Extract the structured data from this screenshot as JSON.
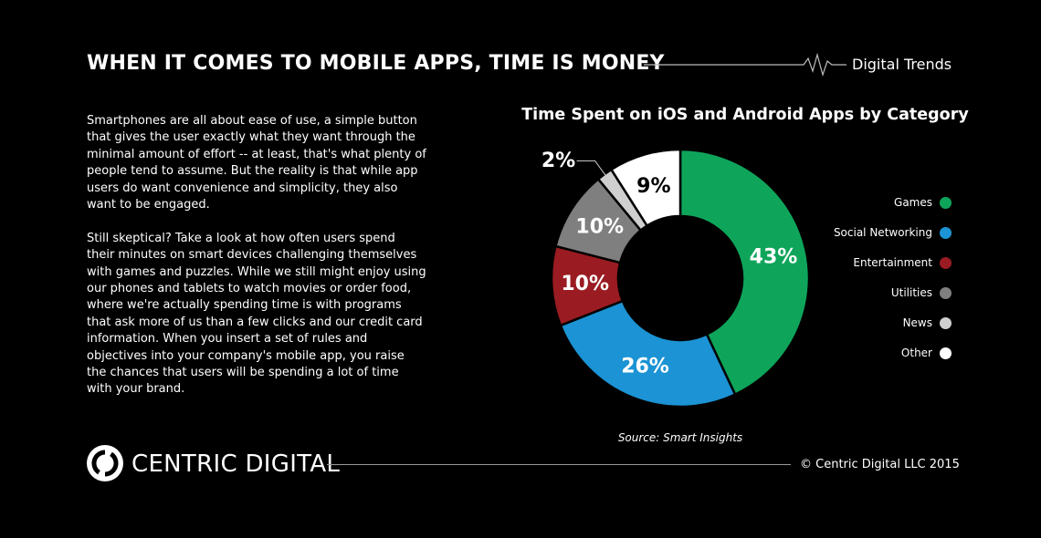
{
  "header": {
    "title": "WHEN IT COMES TO MOBILE APPS, TIME IS MONEY",
    "tag": "Digital Trends"
  },
  "body": {
    "paragraphs": [
      "Smartphones are all about ease of use, a simple button that gives the user exactly what they want through the minimal amount of effort -- at least, that's what plenty of people tend to assume. But the reality is that while app users do want convenience and simplicity, they also want to be engaged.",
      "Still skeptical? Take a look at how often users spend their minutes on smart devices challenging themselves with games and puzzles. While we still might enjoy using our phones and tablets to watch movies or order food, where we're actually spending time is with programs that ask more of us than a few clicks and our credit card information. When you insert a set of rules and objectives into your company's mobile app, you raise the chances that users will be spending a lot of time with your brand."
    ]
  },
  "chart_data": {
    "type": "pie",
    "variant": "donut",
    "title": "Time Spent on iOS and Android Apps by Category",
    "source": "Source: Smart Insights",
    "legend_position": "right",
    "slices": [
      {
        "name": "Games",
        "value": 43,
        "label": "43%",
        "color": "#0ea55b"
      },
      {
        "name": "Social Networking",
        "value": 26,
        "label": "26%",
        "color": "#1b93d4"
      },
      {
        "name": "Entertainment",
        "value": 10,
        "label": "10%",
        "color": "#9a1b22"
      },
      {
        "name": "Utilities",
        "value": 10,
        "label": "10%",
        "color": "#7f7f7f"
      },
      {
        "name": "News",
        "value": 2,
        "label": "2%",
        "color": "#cfcfcf"
      },
      {
        "name": "Other",
        "value": 9,
        "label": "9%",
        "color": "#ffffff"
      }
    ]
  },
  "footer": {
    "logo_text": "CENTRIC DIGITAL",
    "copyright": "© Centric Digital LLC 2015"
  }
}
